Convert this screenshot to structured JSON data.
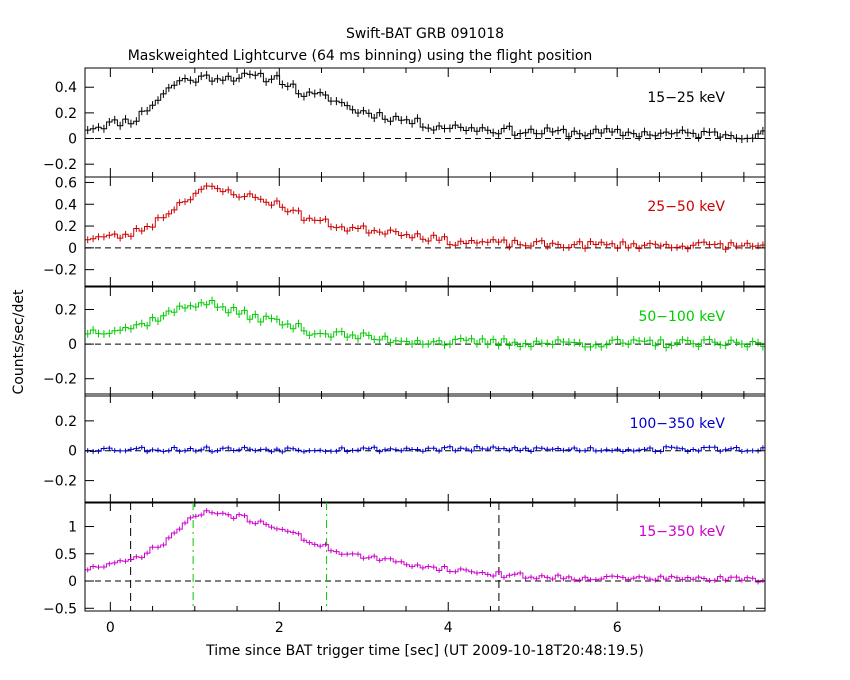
{
  "chart_data": {
    "type": "line",
    "title": "Swift-BAT GRB 091018",
    "subtitle": "Maskweighted Lightcurve (64 ms binning) using the flight position",
    "xlabel": "Time since BAT trigger time [sec] (UT 2009-10-18T20:48:19.5)",
    "ylabel": "Counts/sec/det",
    "xlim": [
      -0.3,
      7.75
    ],
    "x_ticks": [
      0,
      2,
      4,
      6
    ],
    "x_tick_labels": [
      "0",
      "2",
      "4",
      "6"
    ],
    "reference_lines": [
      {
        "x": 0.24,
        "style": "dashed",
        "color": "#000000"
      },
      {
        "x": 4.6,
        "style": "dashed",
        "color": "#000000"
      },
      {
        "x": 0.98,
        "style": "dashdot",
        "color": "#00cc00"
      },
      {
        "x": 2.56,
        "style": "dashdot",
        "color": "#00cc00"
      }
    ],
    "bin_width": 0.064,
    "x_start": -0.3,
    "series": [
      {
        "name": "15-25 keV",
        "label": "15−25 keV",
        "color": "#000000",
        "ylim": [
          -0.3,
          0.55
        ],
        "y_ticks": [
          -0.2,
          0,
          0.2,
          0.4
        ],
        "y_tick_labels": [
          "−0.2",
          "0",
          "0.2",
          "0.4"
        ],
        "envelope": [
          [
            -0.3,
            0.08
          ],
          [
            0.3,
            0.15
          ],
          [
            0.8,
            0.45
          ],
          [
            1.2,
            0.48
          ],
          [
            1.6,
            0.48
          ],
          [
            2.0,
            0.47
          ],
          [
            2.3,
            0.34
          ],
          [
            2.6,
            0.32
          ],
          [
            2.9,
            0.22
          ],
          [
            3.3,
            0.17
          ],
          [
            3.8,
            0.1
          ],
          [
            4.3,
            0.08
          ],
          [
            5.0,
            0.05
          ],
          [
            7.75,
            0.03
          ]
        ],
        "noise": 0.035,
        "seed": 11
      },
      {
        "name": "25-50 keV",
        "label": "25−50 keV",
        "color": "#cc0000",
        "ylim": [
          -0.35,
          0.65
        ],
        "y_ticks": [
          -0.2,
          0,
          0.2,
          0.4,
          0.6
        ],
        "y_tick_labels": [
          "−0.2",
          "0",
          "0.2",
          "0.4",
          "0.6"
        ],
        "envelope": [
          [
            -0.3,
            0.09
          ],
          [
            0.2,
            0.11
          ],
          [
            0.5,
            0.22
          ],
          [
            0.9,
            0.45
          ],
          [
            1.1,
            0.55
          ],
          [
            1.5,
            0.5
          ],
          [
            2.0,
            0.4
          ],
          [
            2.3,
            0.28
          ],
          [
            2.8,
            0.18
          ],
          [
            3.4,
            0.15
          ],
          [
            4.0,
            0.06
          ],
          [
            5.0,
            0.03
          ],
          [
            7.75,
            0.02
          ]
        ],
        "noise": 0.035,
        "seed": 23
      },
      {
        "name": "50-100 keV",
        "label": "50−100 keV",
        "color": "#00cc00",
        "ylim": [
          -0.3,
          0.33
        ],
        "y_ticks": [
          -0.2,
          0,
          0.2
        ],
        "y_tick_labels": [
          "−0.2",
          "0",
          "0.2"
        ],
        "envelope": [
          [
            -0.3,
            0.07
          ],
          [
            0.3,
            0.1
          ],
          [
            0.7,
            0.18
          ],
          [
            1.1,
            0.25
          ],
          [
            1.5,
            0.18
          ],
          [
            1.9,
            0.14
          ],
          [
            2.4,
            0.07
          ],
          [
            3.2,
            0.03
          ],
          [
            4.0,
            0.01
          ],
          [
            7.75,
            0.0
          ]
        ],
        "noise": 0.025,
        "seed": 37
      },
      {
        "name": "100-350 keV",
        "label": "100−350 keV",
        "color": "#0000cc",
        "ylim": [
          -0.35,
          0.38
        ],
        "y_ticks": [
          -0.2,
          0,
          0.2
        ],
        "y_tick_labels": [
          "−0.2",
          "0",
          "0.2"
        ],
        "envelope": [
          [
            -0.3,
            0.01
          ],
          [
            7.75,
            0.01
          ]
        ],
        "noise": 0.018,
        "seed": 53
      },
      {
        "name": "15-350 keV",
        "label": "15−350 keV",
        "color": "#cc00cc",
        "ylim": [
          -0.55,
          1.45
        ],
        "y_ticks": [
          -0.5,
          0,
          0.5,
          1
        ],
        "y_tick_labels": [
          "−0.5",
          "0",
          "0.5",
          "1"
        ],
        "envelope": [
          [
            -0.3,
            0.22
          ],
          [
            0.2,
            0.35
          ],
          [
            0.6,
            0.65
          ],
          [
            0.95,
            1.15
          ],
          [
            1.2,
            1.27
          ],
          [
            1.6,
            1.15
          ],
          [
            2.0,
            0.98
          ],
          [
            2.4,
            0.7
          ],
          [
            2.8,
            0.5
          ],
          [
            3.4,
            0.34
          ],
          [
            4.0,
            0.22
          ],
          [
            4.6,
            0.12
          ],
          [
            5.2,
            0.07
          ],
          [
            7.75,
            0.03
          ]
        ],
        "noise": 0.05,
        "seed": 71
      }
    ]
  }
}
